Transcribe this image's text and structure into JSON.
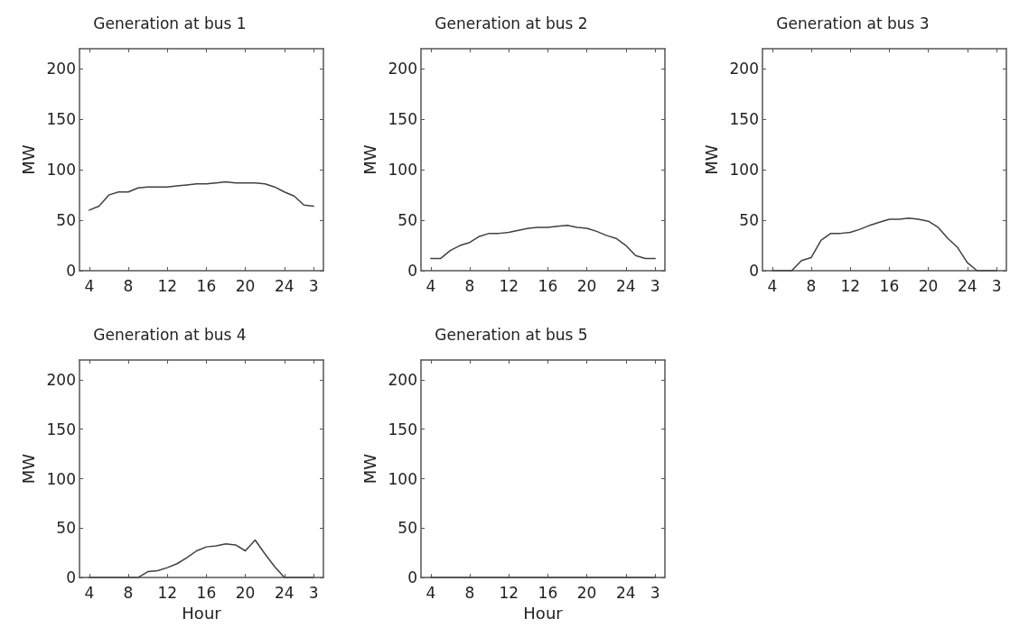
{
  "chart_data": [
    {
      "type": "line",
      "title": "Generation at bus 1",
      "ylabel": "MW",
      "categories": [
        "4",
        null,
        null,
        null,
        "8",
        null,
        null,
        null,
        "12",
        null,
        null,
        null,
        "16",
        null,
        null,
        null,
        "20",
        null,
        null,
        null,
        "24",
        null,
        null,
        "3"
      ],
      "series": [
        {
          "color": "#404040",
          "values": [
            60,
            64,
            75,
            78,
            78,
            82,
            83,
            83,
            83,
            84,
            85,
            86,
            86,
            87,
            88,
            87,
            87,
            87,
            86,
            83,
            78,
            74,
            65,
            64
          ]
        }
      ],
      "ylim": [
        0,
        220
      ],
      "yticks": [
        0,
        50,
        100,
        150,
        200
      ],
      "grid": false,
      "marker": "none",
      "line_style": "solid"
    },
    {
      "type": "line",
      "title": "Generation at bus 2",
      "ylabel": "MW",
      "categories": [
        "4",
        null,
        null,
        null,
        "8",
        null,
        null,
        null,
        "12",
        null,
        null,
        null,
        "16",
        null,
        null,
        null,
        "20",
        null,
        null,
        null,
        "24",
        null,
        null,
        "3"
      ],
      "series": [
        {
          "color": "#404040",
          "values": [
            12,
            12,
            20,
            25,
            28,
            34,
            37,
            37,
            38,
            40,
            42,
            43,
            43,
            44,
            45,
            43,
            42,
            39,
            35,
            32,
            25,
            15,
            12,
            12
          ]
        }
      ],
      "ylim": [
        0,
        220
      ],
      "yticks": [
        0,
        50,
        100,
        150,
        200
      ],
      "grid": false,
      "marker": "none",
      "line_style": "solid"
    },
    {
      "type": "line",
      "title": "Generation at bus 3",
      "ylabel": "MW",
      "categories": [
        "4",
        null,
        null,
        null,
        "8",
        null,
        null,
        null,
        "12",
        null,
        null,
        null,
        "16",
        null,
        null,
        null,
        "20",
        null,
        null,
        null,
        "24",
        null,
        null,
        "3"
      ],
      "series": [
        {
          "color": "#404040",
          "values": [
            0,
            0,
            0,
            10,
            13,
            30,
            37,
            37,
            38,
            41,
            45,
            48,
            51,
            51,
            52,
            51,
            49,
            43,
            32,
            23,
            8,
            0,
            0,
            0
          ]
        }
      ],
      "ylim": [
        0,
        220
      ],
      "yticks": [
        0,
        50,
        100,
        150,
        200
      ],
      "grid": false,
      "marker": "none",
      "line_style": "solid"
    },
    {
      "type": "line",
      "title": "Generation at bus 4",
      "xlabel": "Hour",
      "ylabel": "MW",
      "categories": [
        "4",
        null,
        null,
        null,
        "8",
        null,
        null,
        null,
        "12",
        null,
        null,
        null,
        "16",
        null,
        null,
        null,
        "20",
        null,
        null,
        null,
        "24",
        null,
        null,
        "3"
      ],
      "series": [
        {
          "color": "#404040",
          "values": [
            0,
            0,
            0,
            0,
            0,
            0,
            6,
            7,
            10,
            14,
            20,
            27,
            31,
            32,
            34,
            33,
            27,
            38,
            24,
            11,
            0,
            0,
            0,
            0
          ]
        }
      ],
      "ylim": [
        0,
        220
      ],
      "yticks": [
        0,
        50,
        100,
        150,
        200
      ],
      "grid": false,
      "marker": "none",
      "line_style": "solid"
    },
    {
      "type": "line",
      "title": "Generation at bus 5",
      "xlabel": "Hour",
      "ylabel": "MW",
      "categories": [
        "4",
        null,
        null,
        null,
        "8",
        null,
        null,
        null,
        "12",
        null,
        null,
        null,
        "16",
        null,
        null,
        null,
        "20",
        null,
        null,
        null,
        "24",
        null,
        null,
        "3"
      ],
      "series": [
        {
          "color": "#404040",
          "values": [
            0,
            0,
            0,
            0,
            0,
            0,
            0,
            0,
            0,
            0,
            0,
            0,
            0,
            0,
            0,
            0,
            0,
            0,
            0,
            0,
            0,
            0,
            0,
            0
          ]
        }
      ],
      "ylim": [
        0,
        220
      ],
      "yticks": [
        0,
        50,
        100,
        150,
        200
      ],
      "grid": false,
      "marker": "none",
      "line_style": "solid"
    }
  ]
}
